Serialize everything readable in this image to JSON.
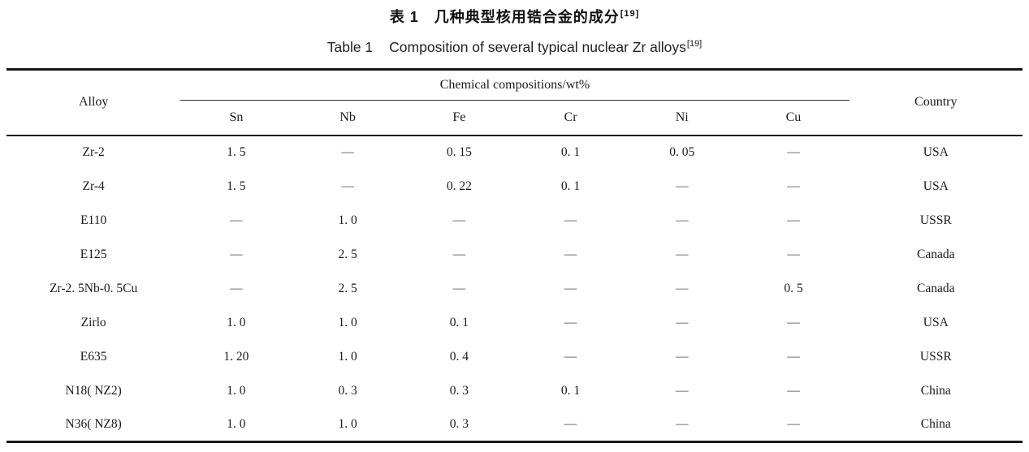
{
  "titles": {
    "chinese": "表 1　几种典型核用锆合金的成分",
    "chinese_ref": "[19]",
    "english_label": "Table 1",
    "english_text": "Composition of several typical nuclear Zr alloys",
    "english_ref": "[19]"
  },
  "table": {
    "header": {
      "alloy": "Alloy",
      "group": "Chemical compositions/wt%",
      "elements": [
        "Sn",
        "Nb",
        "Fe",
        "Cr",
        "Ni",
        "Cu"
      ],
      "country": "Country"
    },
    "rows": [
      {
        "alloy": "Zr-2",
        "values": [
          "1. 5",
          "—",
          "0. 15",
          "0. 1",
          "0. 05",
          "—"
        ],
        "country": "USA"
      },
      {
        "alloy": "Zr-4",
        "values": [
          "1. 5",
          "—",
          "0. 22",
          "0. 1",
          "—",
          "—"
        ],
        "country": "USA"
      },
      {
        "alloy": "E110",
        "values": [
          "—",
          "1. 0",
          "—",
          "—",
          "—",
          "—"
        ],
        "country": "USSR"
      },
      {
        "alloy": "E125",
        "values": [
          "—",
          "2. 5",
          "—",
          "—",
          "—",
          "—"
        ],
        "country": "Canada"
      },
      {
        "alloy": "Zr-2. 5Nb-0. 5Cu",
        "values": [
          "—",
          "2. 5",
          "—",
          "—",
          "—",
          "0. 5"
        ],
        "country": "Canada"
      },
      {
        "alloy": "Zirlo",
        "values": [
          "1. 0",
          "1. 0",
          "0. 1",
          "—",
          "—",
          "—"
        ],
        "country": "USA"
      },
      {
        "alloy": "E635",
        "values": [
          "1. 20",
          "1. 0",
          "0. 4",
          "—",
          "—",
          "—"
        ],
        "country": "USSR"
      },
      {
        "alloy": "N18( NZ2)",
        "values": [
          "1. 0",
          "0. 3",
          "0. 3",
          "0. 1",
          "—",
          "—"
        ],
        "country": "China"
      },
      {
        "alloy": "N36( NZ8)",
        "values": [
          "1. 0",
          "1. 0",
          "0. 3",
          "—",
          "—",
          "—"
        ],
        "country": "China"
      }
    ]
  }
}
